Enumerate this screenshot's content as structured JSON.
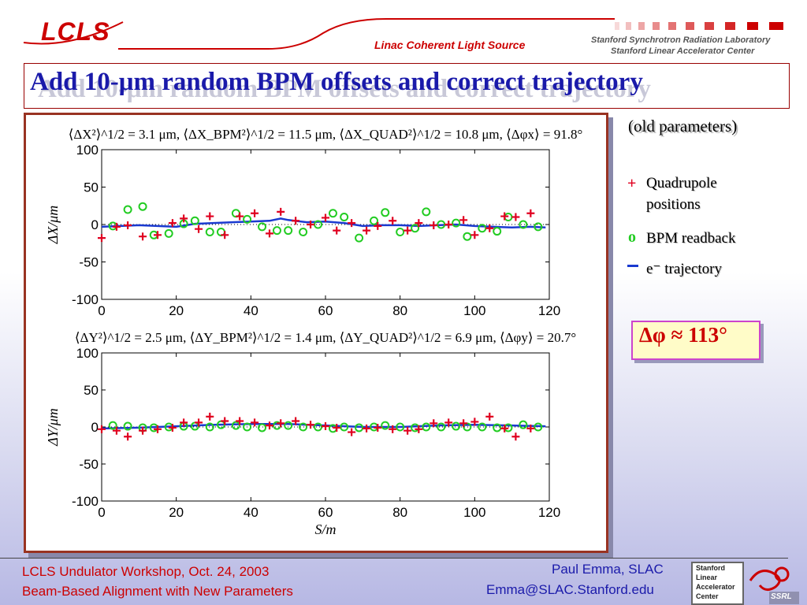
{
  "header": {
    "logo_text": "LCLS",
    "subtitle": "Linac Coherent Light Source",
    "lab_line1": "Stanford Synchrotron Radiation Laboratory",
    "lab_line2": "Stanford Linear Accelerator Center"
  },
  "title": "Add 10-μm random BPM offsets and correct trajectory",
  "side": {
    "old_params": "(old parameters)",
    "legend_quad_mark": "+",
    "legend_quad_line1": "Quadrupole",
    "legend_quad_line2": "positions",
    "legend_bpm_mark": "o",
    "legend_bpm": "BPM readback",
    "legend_traj": "e⁻ trajectory",
    "phase": "Δφ ≈ 113°"
  },
  "footer": {
    "left1": "LCLS Undulator Workshop, Oct. 24, 2003",
    "left2": "Beam-Based Alignment with New Parameters",
    "right1": "Paul Emma, SLAC",
    "right2": "Emma@SLAC.Stanford.edu",
    "slac_logo": [
      "Stanford",
      "Linear",
      "Accelerator",
      "Center"
    ],
    "ssrl_logo": "SSRL"
  },
  "colors": {
    "quad": "#e00020",
    "bpm": "#22cc22",
    "traj": "#1a3ad0",
    "title": "#1a1aaa",
    "accent": "#cc0000"
  },
  "chart_data": [
    {
      "type": "scatter",
      "title": "⟨ΔX²⟩^1/2 = 3.1 μm, ⟨ΔX_BPM²⟩^1/2 = 11.5 μm, ⟨ΔX_QUAD²⟩^1/2 = 10.8 μm, ⟨Δφx⟩ = 91.8°",
      "xlabel": "",
      "ylabel": "ΔX/μm",
      "xlim": [
        0,
        120
      ],
      "ylim": [
        -100,
        100
      ],
      "xticks": [
        "0",
        "20",
        "40",
        "60",
        "80",
        "100",
        "120"
      ],
      "yticks": [
        "100",
        "50",
        "0",
        "-50",
        "-100"
      ],
      "series": [
        {
          "name": "Quadrupole positions",
          "x": [
            0,
            4,
            7,
            11,
            15,
            19,
            22,
            26,
            29,
            33,
            37,
            41,
            45,
            48,
            52,
            56,
            60,
            63,
            67,
            71,
            74,
            78,
            82,
            85,
            89,
            93,
            97,
            100,
            104,
            108,
            111,
            115
          ],
          "y": [
            -18,
            -3,
            -1,
            -16,
            -14,
            2,
            8,
            -6,
            11,
            -14,
            11,
            15,
            -12,
            17,
            5,
            0,
            9,
            -8,
            2,
            -8,
            -2,
            5,
            -8,
            2,
            -1,
            0,
            6,
            -14,
            -5,
            11,
            10,
            15
          ]
        },
        {
          "name": "BPM readback",
          "x": [
            3,
            7,
            11,
            14,
            18,
            22,
            25,
            29,
            32,
            36,
            39,
            43,
            47,
            50,
            54,
            58,
            62,
            65,
            69,
            73,
            76,
            80,
            84,
            87,
            91,
            95,
            98,
            102,
            106,
            109,
            113,
            117
          ],
          "y": [
            -2,
            20,
            24,
            -14,
            -12,
            1,
            5,
            -10,
            -10,
            15,
            7,
            -3,
            -8,
            -8,
            -10,
            0,
            15,
            10,
            -18,
            5,
            16,
            -10,
            -5,
            17,
            0,
            2,
            -16,
            -5,
            -9,
            10,
            0,
            -3
          ]
        },
        {
          "name": "e⁻ trajectory",
          "x": [
            0,
            5,
            10,
            15,
            20,
            25,
            30,
            35,
            40,
            45,
            48,
            50,
            55,
            60,
            65,
            70,
            75,
            80,
            85,
            90,
            95,
            100,
            105,
            110,
            115,
            119
          ],
          "y": [
            -3,
            -2,
            -1,
            -2,
            -3,
            1,
            2,
            3,
            4,
            5,
            8,
            6,
            3,
            4,
            2,
            -2,
            -1,
            -1,
            -2,
            -1,
            0,
            -2,
            -3,
            -4,
            -3,
            -4
          ]
        }
      ]
    },
    {
      "type": "scatter",
      "title": "⟨ΔY²⟩^1/2 = 2.5 μm, ⟨ΔY_BPM²⟩^1/2 = 1.4 μm, ⟨ΔY_QUAD²⟩^1/2 = 6.9 μm, ⟨Δφy⟩ = 20.7°",
      "xlabel": "S/m",
      "ylabel": "ΔY/μm",
      "xlim": [
        0,
        120
      ],
      "ylim": [
        -100,
        100
      ],
      "xticks": [
        "0",
        "20",
        "40",
        "60",
        "80",
        "100",
        "120"
      ],
      "yticks": [
        "100",
        "50",
        "0",
        "-50",
        "-100"
      ],
      "series": [
        {
          "name": "Quadrupole positions",
          "x": [
            0,
            4,
            7,
            11,
            15,
            19,
            22,
            26,
            29,
            33,
            37,
            41,
            45,
            48,
            52,
            56,
            60,
            63,
            67,
            71,
            74,
            78,
            82,
            85,
            89,
            93,
            97,
            100,
            104,
            108,
            111,
            115
          ],
          "y": [
            -3,
            -5,
            -13,
            -5,
            -3,
            -1,
            6,
            6,
            14,
            8,
            8,
            6,
            2,
            5,
            8,
            3,
            1,
            -1,
            -7,
            -2,
            -1,
            -3,
            -5,
            -3,
            5,
            6,
            5,
            7,
            14,
            -2,
            -13,
            -2
          ]
        },
        {
          "name": "BPM readback",
          "x": [
            3,
            7,
            11,
            14,
            18,
            22,
            25,
            29,
            32,
            36,
            39,
            43,
            47,
            50,
            54,
            58,
            62,
            65,
            69,
            73,
            76,
            80,
            84,
            87,
            91,
            95,
            98,
            102,
            106,
            109,
            113,
            117
          ],
          "y": [
            2,
            1,
            -1,
            -1,
            0,
            1,
            1,
            0,
            3,
            2,
            0,
            -1,
            2,
            2,
            0,
            0,
            -2,
            0,
            -1,
            0,
            2,
            0,
            -1,
            0,
            0,
            1,
            0,
            0,
            -1,
            -1,
            3,
            0
          ]
        },
        {
          "name": "e⁻ trajectory",
          "x": [
            0,
            10,
            20,
            30,
            40,
            50,
            60,
            70,
            80,
            90,
            100,
            110,
            119
          ],
          "y": [
            -2,
            -1,
            1,
            3,
            4,
            4,
            2,
            0,
            0,
            2,
            3,
            2,
            1
          ]
        }
      ]
    }
  ]
}
